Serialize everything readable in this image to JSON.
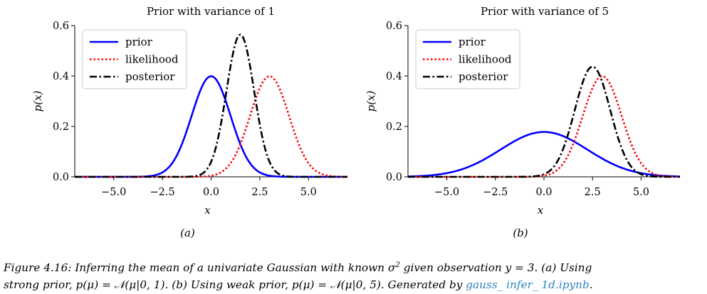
{
  "chart_data": [
    {
      "type": "line",
      "title": "Prior with variance of 1",
      "xlabel": "x",
      "ylabel": "p(x)",
      "xlim": [
        -7,
        7
      ],
      "ylim": [
        0,
        0.6
      ],
      "xticks": [
        -5.0,
        -2.5,
        0.0,
        2.5,
        5.0
      ],
      "xtick_labels": [
        "−5.0",
        "−2.5",
        "0.0",
        "2.5",
        "5.0"
      ],
      "yticks": [
        0.0,
        0.2,
        0.4,
        0.6
      ],
      "ytick_labels": [
        "0.0",
        "0.2",
        "0.4",
        "0.6"
      ],
      "legend_position": "top-left",
      "panel_label": "(a)",
      "series": [
        {
          "name": "prior",
          "mean": 0,
          "variance": 1,
          "peak": 0.399,
          "color": "#0000ff",
          "style": "solid"
        },
        {
          "name": "likelihood",
          "mean": 3,
          "variance": 1,
          "peak": 0.399,
          "color": "#ff0000",
          "style": "dotted"
        },
        {
          "name": "posterior",
          "mean": 1.5,
          "variance": 0.5,
          "peak": 0.564,
          "color": "#000000",
          "style": "dashdot"
        }
      ]
    },
    {
      "type": "line",
      "title": "Prior with variance of 5",
      "xlabel": "x",
      "ylabel": "p(x)",
      "xlim": [
        -7,
        7
      ],
      "ylim": [
        0,
        0.6
      ],
      "xticks": [
        -5.0,
        -2.5,
        0.0,
        2.5,
        5.0
      ],
      "xtick_labels": [
        "−5.0",
        "−2.5",
        "0.0",
        "2.5",
        "5.0"
      ],
      "yticks": [
        0.0,
        0.2,
        0.4,
        0.6
      ],
      "ytick_labels": [
        "0.0",
        "0.2",
        "0.4",
        "0.6"
      ],
      "legend_position": "top-left",
      "panel_label": "(b)",
      "series": [
        {
          "name": "prior",
          "mean": 0,
          "variance": 5,
          "peak": 0.178,
          "color": "#0000ff",
          "style": "solid"
        },
        {
          "name": "likelihood",
          "mean": 3,
          "variance": 1,
          "peak": 0.399,
          "color": "#ff0000",
          "style": "dotted"
        },
        {
          "name": "posterior",
          "mean": 2.5,
          "variance": 0.833,
          "peak": 0.437,
          "color": "#000000",
          "style": "dashdot"
        }
      ]
    }
  ],
  "caption": {
    "prefix": "Figure 4.16: Inferring the mean of a univariate Gaussian with known σ",
    "sup": "2",
    "line1_rest": " given observation y = 3. (a) Using",
    "line2": "strong prior, p(μ) = 𝒩(μ|0, 1). (b) Using weak prior, p(μ) = 𝒩(μ|0, 5). Generated by ",
    "link_text": "gauss_ infer_ 1d.ipynb",
    "suffix": "."
  }
}
